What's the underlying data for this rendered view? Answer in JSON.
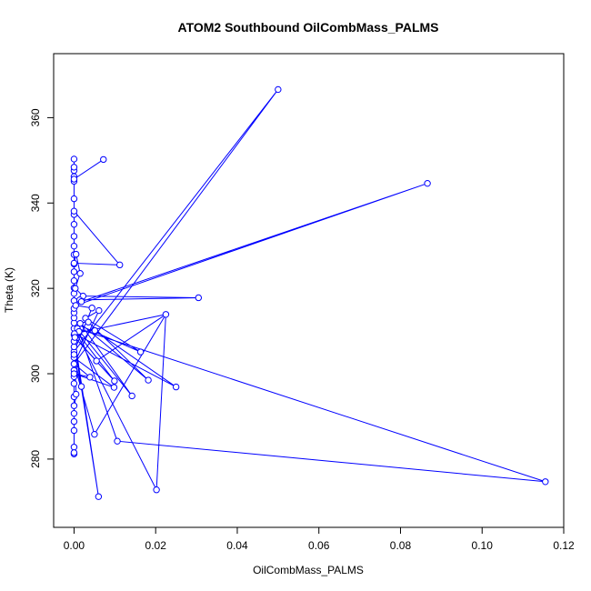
{
  "chart_data": {
    "type": "line",
    "title": "ATOM2 Southbound OilCombMass_PALMS",
    "xlabel": "OilCombMass_PALMS",
    "ylabel": "Theta (K)",
    "xlim": [
      -0.005,
      0.12
    ],
    "ylim": [
      264,
      375
    ],
    "xticks": [
      0.0,
      0.02,
      0.04,
      0.06,
      0.08,
      0.1,
      0.12
    ],
    "xtick_labels": [
      "0.00",
      "0.02",
      "0.04",
      "0.06",
      "0.08",
      "0.10",
      "0.12"
    ],
    "yticks": [
      280,
      300,
      320,
      340,
      360
    ],
    "ytick_labels": [
      "280",
      "300",
      "320",
      "340",
      "360"
    ],
    "grid": false,
    "series_color": "#0000ff",
    "marker": "open-circle",
    "points": [
      [
        0.0,
        281.2
      ],
      [
        0.0,
        282.8
      ],
      [
        0.0,
        286.7
      ],
      [
        0.0,
        288.8
      ],
      [
        0.0,
        290.7
      ],
      [
        0.0,
        292.5
      ],
      [
        0.0,
        294.6
      ],
      [
        0.0,
        297.7
      ],
      [
        0.0,
        299.3
      ],
      [
        0.0,
        300.8
      ],
      [
        0.0,
        302.3
      ],
      [
        0.0,
        303.8
      ],
      [
        0.0,
        305.2
      ],
      [
        0.0,
        306.3
      ],
      [
        0.0,
        307.6
      ],
      [
        0.0,
        309.1
      ],
      [
        0.0,
        310.6
      ],
      [
        0.0,
        311.9
      ],
      [
        0.0,
        313.1
      ],
      [
        0.0,
        314.3
      ],
      [
        0.0,
        315.3
      ],
      [
        0.0,
        317.1
      ],
      [
        0.0,
        318.8
      ],
      [
        0.0,
        320.1
      ],
      [
        0.0,
        321.8
      ],
      [
        0.0,
        323.9
      ],
      [
        0.0,
        325.7
      ],
      [
        0.0,
        327.9
      ],
      [
        0.0,
        329.9
      ],
      [
        0.0,
        332.2
      ],
      [
        0.0,
        335.0
      ],
      [
        0.0,
        337.3
      ],
      [
        0.0,
        341.0
      ],
      [
        0.0,
        345.1
      ],
      [
        0.0,
        347.6
      ],
      [
        0.0,
        348.4
      ],
      [
        0.0,
        350.3
      ],
      [
        0.0,
        346.2
      ],
      [
        0.0,
        345.6
      ],
      [
        0.0072,
        350.2
      ],
      [
        0.0,
        338.1
      ],
      [
        0.0112,
        325.5
      ],
      [
        0.0,
        325.9
      ],
      [
        0.0005,
        328.0
      ],
      [
        0.0015,
        323.5
      ],
      [
        0.0003,
        320.0
      ],
      [
        0.0022,
        318.2
      ],
      [
        0.0014,
        317.3
      ],
      [
        0.0018,
        316.9
      ],
      [
        0.0004,
        316.0
      ],
      [
        0.0044,
        315.4
      ],
      [
        0.0061,
        314.8
      ],
      [
        0.0028,
        313.0
      ],
      [
        0.0035,
        312.1
      ],
      [
        0.0015,
        311.8
      ],
      [
        0.0008,
        310.6
      ],
      [
        0.0051,
        310.1
      ],
      [
        0.0012,
        309.9
      ],
      [
        0.0001,
        309.4
      ],
      [
        0.0002,
        308.5
      ],
      [
        0.0055,
        303.0
      ],
      [
        0.0099,
        298.3
      ],
      [
        0.0098,
        296.8
      ],
      [
        0.0039,
        299.2
      ],
      [
        0.0018,
        297.0
      ],
      [
        0.0005,
        295.2
      ],
      [
        0.0142,
        294.8
      ],
      [
        0.0163,
        305.1
      ],
      [
        0.0182,
        298.5
      ],
      [
        0.025,
        296.9
      ],
      [
        0.0225,
        313.9
      ],
      [
        0.0305,
        317.8
      ],
      [
        0.05,
        366.6
      ],
      [
        0.0866,
        344.6
      ],
      [
        0.1155,
        274.7
      ],
      [
        0.0106,
        284.2
      ],
      [
        0.005,
        285.8
      ],
      [
        0.006,
        271.2
      ],
      [
        0.0202,
        272.8
      ],
      [
        0.0,
        281.5
      ],
      [
        0.0,
        300.0
      ],
      [
        0.0,
        304.5
      ]
    ],
    "path": [
      [
        0.0,
        281.2
      ],
      [
        0.0,
        282.8
      ],
      [
        0.0,
        286.7
      ],
      [
        0.0,
        288.8
      ],
      [
        0.0,
        290.7
      ],
      [
        0.0,
        292.5
      ],
      [
        0.0,
        294.6
      ],
      [
        0.0,
        297.7
      ],
      [
        0.0,
        299.3
      ],
      [
        0.0,
        300.8
      ],
      [
        0.0,
        302.3
      ],
      [
        0.0,
        303.8
      ],
      [
        0.0,
        305.2
      ],
      [
        0.0,
        306.3
      ],
      [
        0.0,
        307.6
      ],
      [
        0.0,
        309.1
      ],
      [
        0.0,
        310.6
      ],
      [
        0.0,
        311.9
      ],
      [
        0.0,
        313.1
      ],
      [
        0.0,
        314.3
      ],
      [
        0.0,
        315.3
      ],
      [
        0.0,
        317.1
      ],
      [
        0.0,
        318.8
      ],
      [
        0.0,
        320.1
      ],
      [
        0.0,
        321.8
      ],
      [
        0.0,
        323.9
      ],
      [
        0.0,
        325.7
      ],
      [
        0.0,
        327.9
      ],
      [
        0.0,
        329.9
      ],
      [
        0.0,
        332.2
      ],
      [
        0.0,
        335.0
      ],
      [
        0.0,
        337.3
      ],
      [
        0.0,
        341.0
      ],
      [
        0.0,
        345.1
      ],
      [
        0.0,
        347.6
      ],
      [
        0.0,
        348.4
      ],
      [
        0.0,
        350.3
      ],
      [
        0.0,
        346.2
      ],
      [
        0.0,
        345.6
      ],
      [
        0.0072,
        350.2
      ],
      [
        0.0,
        345.6
      ],
      [
        0.0,
        338.1
      ],
      [
        0.0112,
        325.5
      ],
      [
        0.0,
        325.9
      ],
      [
        0.0005,
        328.0
      ],
      [
        0.0015,
        323.5
      ],
      [
        0.0003,
        320.0
      ],
      [
        0.0022,
        318.2
      ],
      [
        0.0305,
        317.8
      ],
      [
        0.0014,
        317.3
      ],
      [
        0.0018,
        316.9
      ],
      [
        0.0866,
        344.6
      ],
      [
        0.0004,
        316.0
      ],
      [
        0.0044,
        315.4
      ],
      [
        0.0,
        305.2
      ],
      [
        0.05,
        366.6
      ],
      [
        0.0,
        302.3
      ],
      [
        0.0061,
        314.8
      ],
      [
        0.0028,
        313.0
      ],
      [
        0.0163,
        305.1
      ],
      [
        0.0,
        311.9
      ],
      [
        0.0035,
        312.1
      ],
      [
        0.0182,
        298.5
      ],
      [
        0.0015,
        311.8
      ],
      [
        0.0142,
        294.8
      ],
      [
        0.0008,
        310.6
      ],
      [
        0.1155,
        274.7
      ],
      [
        0.0106,
        284.2
      ],
      [
        0.0012,
        309.9
      ],
      [
        0.0051,
        310.1
      ],
      [
        0.025,
        296.9
      ],
      [
        0.0001,
        309.4
      ],
      [
        0.0225,
        313.9
      ],
      [
        0.0202,
        272.8
      ],
      [
        0.0,
        310.6
      ],
      [
        0.0099,
        298.3
      ],
      [
        0.0002,
        308.5
      ],
      [
        0.0055,
        303.0
      ],
      [
        0.0225,
        313.9
      ],
      [
        0.005,
        285.8
      ],
      [
        0.0,
        302.3
      ],
      [
        0.0039,
        299.2
      ],
      [
        0.0,
        300.0
      ],
      [
        0.0098,
        296.8
      ],
      [
        0.0,
        303.8
      ],
      [
        0.0018,
        297.0
      ],
      [
        0.0,
        307.6
      ],
      [
        0.006,
        271.2
      ],
      [
        0.0,
        309.1
      ],
      [
        0.0005,
        295.2
      ],
      [
        0.0,
        291.5
      ],
      [
        0.0,
        281.5
      ],
      [
        0.0,
        304.5
      ]
    ]
  }
}
